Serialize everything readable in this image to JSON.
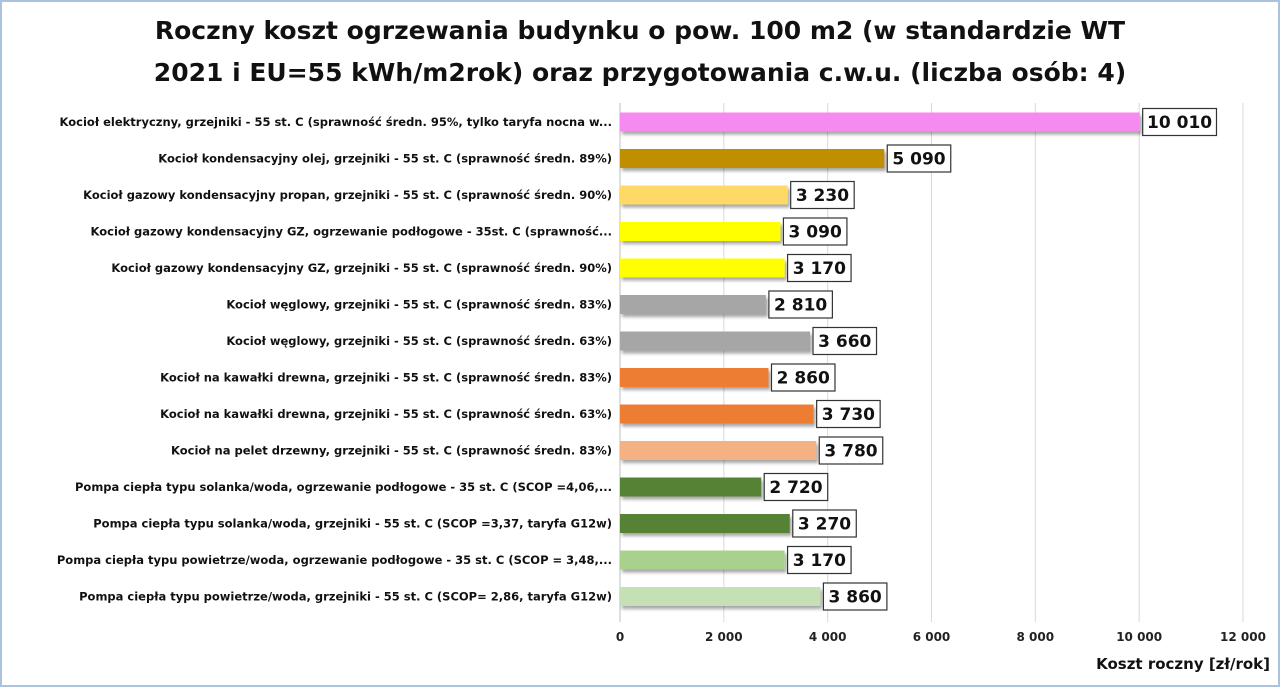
{
  "chart_data": {
    "type": "bar",
    "orientation": "horizontal",
    "title_lines": [
      "Roczny koszt ogrzewania budynku  o pow. 100 m2 (w standardzie WT",
      "2021 i EU=55 kWh/m2rok) oraz przygotowania c.w.u. (liczba osób: 4)"
    ],
    "xlabel": "Koszt roczny [zł/rok]",
    "ylabel": "",
    "xlim": [
      0,
      12000
    ],
    "xticks": [
      0,
      2000,
      4000,
      6000,
      8000,
      10000,
      12000
    ],
    "xtick_labels": [
      "0",
      "2 000",
      "4 000",
      "6 000",
      "8 000",
      "10 000",
      "12 000"
    ],
    "grid": "vertical",
    "categories": [
      "Kocioł  elektryczny,  grzejniki - 55 st. C  (sprawność średn. 95%, tylko taryfa nocna w...",
      "Kocioł  kondensacyjny olej,  grzejniki - 55 st. C  (sprawność średn. 89%)",
      "Kocioł gazowy kondensacyjny propan, grzejniki - 55 st. C  (sprawność średn. 90%)",
      "Kocioł gazowy kondensacyjny GZ, ogrzewanie podłogowe - 35st. C   (sprawność...",
      "Kocioł gazowy kondensacyjny GZ, grzejniki - 55 st. C  (sprawność średn. 90%)",
      "Kocioł węglowy,  grzejniki - 55 st. C  (sprawność średn. 83%)",
      "Kocioł węglowy,  grzejniki - 55 st. C  (sprawność średn. 63%)",
      "Kocioł na kawałki drewna, grzejniki - 55 st. C (sprawność średn. 83%)",
      "Kocioł na kawałki drewna, grzejniki - 55 st. C  (sprawność średn. 63%)",
      "Kocioł na pelet drzewny, grzejniki - 55 st. C (sprawność średn. 83%)",
      "Pompa ciepła typu solanka/woda, ogrzewanie podłogowe - 35 st. C  (SCOP =4,06,...",
      "Pompa ciepła typu solanka/woda, grzejniki - 55 st. C (SCOP =3,37, taryfa G12w)",
      "Pompa ciepła typu powietrze/woda, ogrzewanie podłogowe - 35 st. C (SCOP = 3,48,...",
      "Pompa ciepła typu powietrze/woda, grzejniki - 55 st. C (SCOP= 2,86, taryfa G12w)"
    ],
    "values": [
      10010,
      5090,
      3230,
      3090,
      3170,
      2810,
      3660,
      2860,
      3730,
      3780,
      2720,
      3270,
      3170,
      3860
    ],
    "value_labels": [
      "10 010",
      "5 090",
      "3 230",
      "3 090",
      "3 170",
      "2 810",
      "3 660",
      "2 860",
      "3 730",
      "3 780",
      "2 720",
      "3 270",
      "3 170",
      "3 860"
    ],
    "colors": [
      "#f58af0",
      "#bf8f00",
      "#ffd966",
      "#ffff00",
      "#ffff00",
      "#a6a6a6",
      "#a6a6a6",
      "#ed7d31",
      "#ed7d31",
      "#f4b183",
      "#548235",
      "#548235",
      "#a9d18e",
      "#c5e0b4"
    ]
  }
}
